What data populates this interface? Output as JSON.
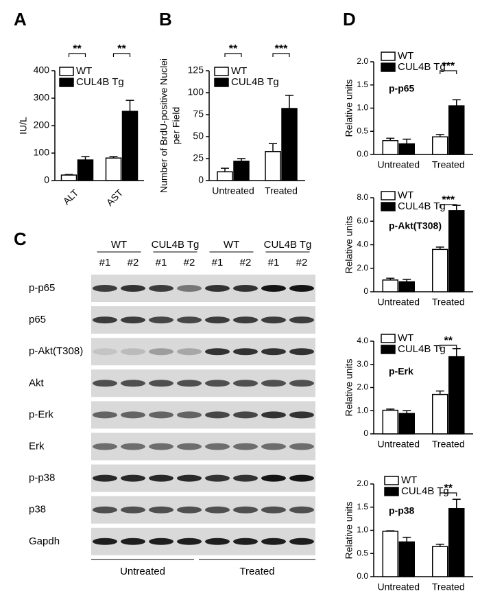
{
  "chart_data": [
    {
      "type": "bar",
      "panel": "A",
      "ylabel": "IU/L",
      "categories": [
        "ALT",
        "AST"
      ],
      "series": [
        {
          "name": "WT",
          "color": "#ffffff",
          "values": [
            20,
            82
          ],
          "errors": [
            2,
            5
          ]
        },
        {
          "name": "CUL4B Tg",
          "color": "#000000",
          "values": [
            75,
            252
          ],
          "errors": [
            12,
            40
          ]
        }
      ],
      "significance": [
        "**",
        "**"
      ],
      "ylim": [
        0,
        400
      ],
      "yticks": [
        0,
        100,
        200,
        300,
        400
      ],
      "legend": "upper left"
    },
    {
      "type": "bar",
      "panel": "B",
      "ylabel": [
        "Number of BrdU-positive Nuclei",
        "per Field"
      ],
      "categories": [
        "Untreated",
        "Treated"
      ],
      "series": [
        {
          "name": "WT",
          "color": "#ffffff",
          "values": [
            10,
            33
          ],
          "errors": [
            4,
            9
          ]
        },
        {
          "name": "CUL4B Tg",
          "color": "#000000",
          "values": [
            22,
            82
          ],
          "errors": [
            3,
            15
          ]
        }
      ],
      "significance": [
        "**",
        "***"
      ],
      "ylim": [
        0,
        125
      ],
      "yticks": [
        0,
        25,
        50,
        75,
        100,
        125
      ],
      "legend": "upper left"
    },
    {
      "type": "bar",
      "panel": "D",
      "annotation": "p-p65",
      "ylabel": "Relative units",
      "categories": [
        "Untreated",
        "Treated"
      ],
      "series": [
        {
          "name": "WT",
          "color": "#ffffff",
          "values": [
            0.3,
            0.38
          ],
          "errors": [
            0.05,
            0.05
          ]
        },
        {
          "name": "CUL4B Tg",
          "color": "#000000",
          "values": [
            0.23,
            1.05
          ],
          "errors": [
            0.1,
            0.13
          ]
        }
      ],
      "significance": [
        null,
        "***"
      ],
      "ylim": [
        0,
        2
      ],
      "yticks": [
        {
          "value": 0,
          "label": "0.0"
        },
        {
          "value": 0.5,
          "label": "0.5"
        },
        {
          "value": 1,
          "label": "1.0"
        },
        {
          "value": 1.5,
          "label": "1.5"
        },
        {
          "value": 2,
          "label": "2.0"
        }
      ],
      "legend": "upper left"
    },
    {
      "type": "bar",
      "annotation": "p-Akt(T308)",
      "ylabel": "Relative units",
      "categories": [
        "Untreated",
        "Treated"
      ],
      "series": [
        {
          "name": "WT",
          "color": "#ffffff",
          "values": [
            1.0,
            3.6
          ],
          "errors": [
            0.15,
            0.2
          ]
        },
        {
          "name": "CUL4B Tg",
          "color": "#000000",
          "values": [
            0.85,
            6.9
          ],
          "errors": [
            0.2,
            0.45
          ]
        }
      ],
      "significance": [
        null,
        "***"
      ],
      "ylim": [
        0,
        8
      ],
      "yticks": [
        {
          "value": 0,
          "label": "0"
        },
        {
          "value": 2,
          "label": "2.0"
        },
        {
          "value": 4,
          "label": "4.0"
        },
        {
          "value": 6,
          "label": "6.0"
        },
        {
          "value": 8,
          "label": "8.0"
        }
      ],
      "legend": "upper left"
    },
    {
      "type": "bar",
      "annotation": "p-Erk",
      "ylabel": "Relative units",
      "categories": [
        "Untreated",
        "Treated"
      ],
      "series": [
        {
          "name": "WT",
          "color": "#ffffff",
          "values": [
            1.02,
            1.7
          ],
          "errors": [
            0.05,
            0.15
          ]
        },
        {
          "name": "CUL4B Tg",
          "color": "#000000",
          "values": [
            0.88,
            3.33
          ],
          "errors": [
            0.12,
            0.35
          ]
        }
      ],
      "significance": [
        null,
        "**"
      ],
      "ylim": [
        0,
        4
      ],
      "yticks": [
        {
          "value": 0,
          "label": "0"
        },
        {
          "value": 1,
          "label": "1.0"
        },
        {
          "value": 2,
          "label": "2.0"
        },
        {
          "value": 3,
          "label": "3.0"
        },
        {
          "value": 4,
          "label": "4.0"
        }
      ],
      "legend": "upper left"
    },
    {
      "type": "bar",
      "annotation": "p-p38",
      "ylabel": "Relative units",
      "categories": [
        "Untreated",
        "Treated"
      ],
      "series": [
        {
          "name": "WT",
          "color": "#ffffff",
          "values": [
            0.98,
            0.65
          ],
          "errors": [
            0.01,
            0.05
          ]
        },
        {
          "name": "CUL4B Tg",
          "color": "#000000",
          "values": [
            0.75,
            1.47
          ],
          "errors": [
            0.1,
            0.2
          ]
        }
      ],
      "significance": [
        null,
        "**"
      ],
      "ylim": [
        0,
        2
      ],
      "yticks": [
        {
          "value": 0,
          "label": "0.0"
        },
        {
          "value": 0.5,
          "label": "0.5"
        },
        {
          "value": 1,
          "label": "1.0"
        },
        {
          "value": 1.5,
          "label": "1.5"
        },
        {
          "value": 2,
          "label": "2.0"
        }
      ],
      "legend": "upper left"
    }
  ],
  "blot": {
    "panel": "C",
    "groups": [
      "WT",
      "CUL4B Tg",
      "WT",
      "CUL4B Tg"
    ],
    "lanes": [
      "#1",
      "#2",
      "#1",
      "#2",
      "#1",
      "#2",
      "#1",
      "#2"
    ],
    "rows": [
      "p-p65",
      "p65",
      "p-Akt(T308)",
      "Akt",
      "p-Erk",
      "Erk",
      "p-p38",
      "p38",
      "Gapdh"
    ],
    "conditions": [
      "Untreated",
      "Treated"
    ]
  }
}
